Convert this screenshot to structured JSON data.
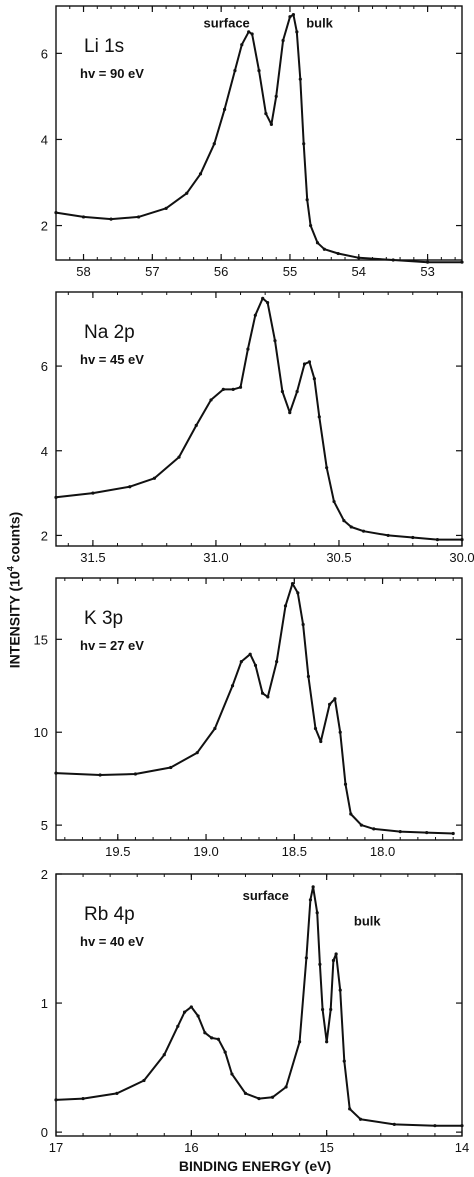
{
  "figure": {
    "ylabel_prefix": "INTENSITY (10",
    "ylabel_sup": "4",
    "ylabel_suffix": " counts)",
    "xlabel": "BINDING ENERGY (eV)"
  },
  "chart_data": [
    {
      "type": "line",
      "title": "Li 1s",
      "subtitle": "hv = 90 eV",
      "xlim": [
        58.4,
        52.5
      ],
      "ylim": [
        1.2,
        7.1
      ],
      "xticks": [
        58,
        57,
        56,
        55,
        54,
        53
      ],
      "yticks": [
        2,
        4,
        6
      ],
      "annotations": [
        {
          "text": "surface",
          "x": 55.92,
          "y": 6.6
        },
        {
          "text": "bulk",
          "x": 54.57,
          "y": 6.6
        }
      ],
      "series": [
        {
          "x": [
            58.4,
            58.0,
            57.6,
            57.2,
            56.8,
            56.5,
            56.3,
            56.1,
            55.95,
            55.8,
            55.7,
            55.6,
            55.55,
            55.45,
            55.35,
            55.27,
            55.2,
            55.1,
            55.0,
            54.95,
            54.9,
            54.85,
            54.8,
            54.75,
            54.7,
            54.6,
            54.5,
            54.3,
            54.0,
            53.5,
            53.0,
            52.5
          ],
          "y": [
            2.3,
            2.2,
            2.15,
            2.2,
            2.4,
            2.75,
            3.2,
            3.9,
            4.7,
            5.6,
            6.2,
            6.5,
            6.45,
            5.6,
            4.6,
            4.35,
            5.0,
            6.3,
            6.85,
            6.9,
            6.5,
            5.4,
            3.9,
            2.6,
            2.0,
            1.6,
            1.45,
            1.35,
            1.25,
            1.2,
            1.15,
            1.15
          ]
        }
      ]
    },
    {
      "type": "line",
      "title": "Na 2p",
      "subtitle": "hv = 45 eV",
      "xlim": [
        31.65,
        30.0
      ],
      "ylim": [
        1.75,
        7.75
      ],
      "xticks": [
        31.5,
        31.0,
        30.5,
        30.0
      ],
      "xticklabels": [
        "31.5",
        "31.0",
        "30.5",
        "30.0"
      ],
      "yticks": [
        2,
        4,
        6
      ],
      "series": [
        {
          "x": [
            31.65,
            31.5,
            31.35,
            31.25,
            31.15,
            31.08,
            31.02,
            30.97,
            30.93,
            30.9,
            30.87,
            30.84,
            30.81,
            30.79,
            30.76,
            30.73,
            30.7,
            30.67,
            30.64,
            30.62,
            30.6,
            30.58,
            30.55,
            30.52,
            30.48,
            30.45,
            30.4,
            30.3,
            30.2,
            30.1,
            30.0
          ],
          "y": [
            2.9,
            3.0,
            3.15,
            3.35,
            3.85,
            4.6,
            5.2,
            5.45,
            5.45,
            5.5,
            6.4,
            7.2,
            7.6,
            7.5,
            6.6,
            5.4,
            4.9,
            5.4,
            6.05,
            6.1,
            5.7,
            4.8,
            3.6,
            2.8,
            2.35,
            2.2,
            2.1,
            2.0,
            1.95,
            1.9,
            1.9
          ]
        }
      ]
    },
    {
      "type": "line",
      "title": "K 3p",
      "subtitle": "hv = 27 eV",
      "xlim": [
        19.85,
        17.55
      ],
      "ylim": [
        4.2,
        18.3
      ],
      "xticks": [
        19.5,
        19.0,
        18.5,
        18.0
      ],
      "xticklabels": [
        "19.5",
        "19.0",
        "18.5",
        "18.0"
      ],
      "yticks": [
        5,
        10,
        15
      ],
      "series": [
        {
          "x": [
            19.85,
            19.6,
            19.4,
            19.2,
            19.05,
            18.95,
            18.85,
            18.8,
            18.75,
            18.72,
            18.68,
            18.65,
            18.6,
            18.55,
            18.51,
            18.48,
            18.45,
            18.42,
            18.38,
            18.35,
            18.3,
            18.27,
            18.24,
            18.21,
            18.18,
            18.12,
            18.05,
            17.9,
            17.75,
            17.6
          ],
          "y": [
            7.8,
            7.7,
            7.75,
            8.1,
            8.9,
            10.2,
            12.5,
            13.8,
            14.2,
            13.6,
            12.1,
            11.9,
            13.8,
            16.8,
            18.0,
            17.5,
            15.8,
            13.0,
            10.2,
            9.5,
            11.5,
            11.8,
            10.0,
            7.2,
            5.6,
            5.0,
            4.8,
            4.65,
            4.6,
            4.55
          ]
        }
      ]
    },
    {
      "type": "line",
      "title": "Rb 4p",
      "subtitle": "hv = 40 eV",
      "xlim": [
        17.0,
        14.0
      ],
      "ylim": [
        -0.03,
        2.0
      ],
      "xticks": [
        17,
        16,
        15,
        14
      ],
      "yticks": [
        0,
        1,
        2
      ],
      "annotations": [
        {
          "text": "surface",
          "x": 15.45,
          "y": 1.8
        },
        {
          "text": "bulk",
          "x": 14.7,
          "y": 1.6
        }
      ],
      "series": [
        {
          "x": [
            17.0,
            16.8,
            16.55,
            16.35,
            16.2,
            16.1,
            16.05,
            16.0,
            15.95,
            15.9,
            15.85,
            15.8,
            15.75,
            15.7,
            15.6,
            15.5,
            15.4,
            15.3,
            15.2,
            15.15,
            15.12,
            15.1,
            15.07,
            15.05,
            15.03,
            15.0,
            14.97,
            14.95,
            14.93,
            14.9,
            14.87,
            14.83,
            14.75,
            14.5,
            14.2,
            14.0
          ],
          "y": [
            0.25,
            0.26,
            0.3,
            0.4,
            0.6,
            0.82,
            0.93,
            0.97,
            0.9,
            0.77,
            0.73,
            0.72,
            0.62,
            0.45,
            0.3,
            0.26,
            0.27,
            0.35,
            0.7,
            1.35,
            1.8,
            1.9,
            1.7,
            1.3,
            0.95,
            0.7,
            0.95,
            1.33,
            1.38,
            1.1,
            0.55,
            0.18,
            0.1,
            0.06,
            0.05,
            0.05
          ]
        }
      ]
    }
  ]
}
